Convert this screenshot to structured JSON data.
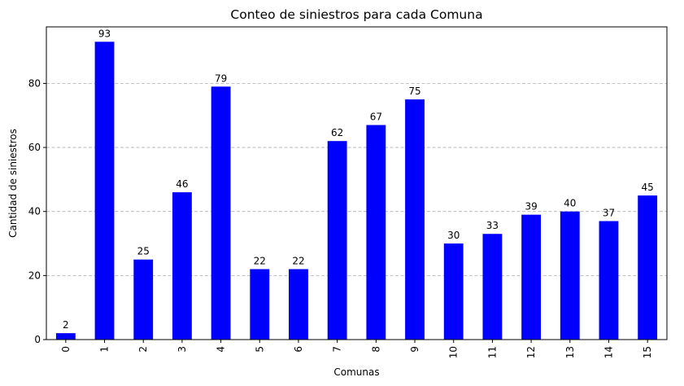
{
  "chart_data": {
    "type": "bar",
    "title": "Conteo de siniestros para cada Comuna",
    "xlabel": "Comunas",
    "ylabel": "Cantidad de siniestros",
    "categories": [
      "0",
      "1",
      "2",
      "3",
      "4",
      "5",
      "6",
      "7",
      "8",
      "9",
      "10",
      "11",
      "12",
      "13",
      "14",
      "15"
    ],
    "values": [
      2,
      93,
      25,
      46,
      79,
      22,
      22,
      62,
      67,
      75,
      30,
      33,
      39,
      40,
      37,
      45
    ],
    "ylim": [
      0,
      97.65
    ],
    "yticks": [
      0,
      20,
      40,
      60,
      80
    ],
    "grid": "y-dashed",
    "legend": "none",
    "bar_color": "#0000ff",
    "data_labels": true,
    "x_tick_rotation": 90
  }
}
